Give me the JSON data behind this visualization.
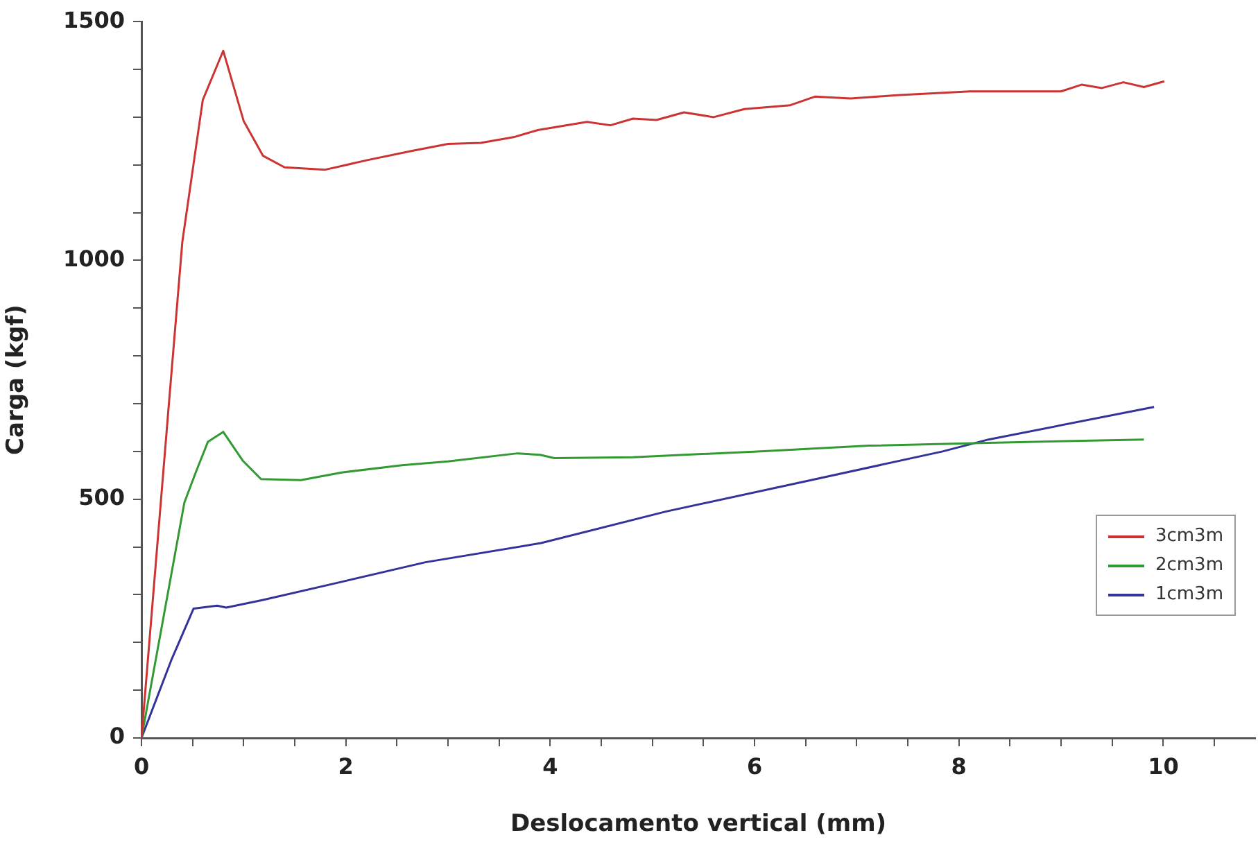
{
  "chart_data": {
    "type": "line",
    "xlabel": "Deslocamento vertical (mm)",
    "ylabel": "Carga (kgf)",
    "xlim": [
      0,
      10.9
    ],
    "ylim": [
      0,
      1500
    ],
    "xticks": [
      0,
      {
        "value": 0.5,
        "label": null
      },
      {
        "value": 1,
        "label": null
      },
      {
        "value": 1.5,
        "label": null
      },
      2,
      {
        "value": 2.5,
        "label": null
      },
      {
        "value": 3,
        "label": null
      },
      {
        "value": 3.5,
        "label": null
      },
      4,
      {
        "value": 4.5,
        "label": null
      },
      {
        "value": 5,
        "label": null
      },
      {
        "value": 5.5,
        "label": null
      },
      6,
      {
        "value": 6.5,
        "label": null
      },
      {
        "value": 7,
        "label": null
      },
      {
        "value": 7.5,
        "label": null
      },
      8,
      {
        "value": 8.5,
        "label": null
      },
      {
        "value": 9,
        "label": null
      },
      {
        "value": 9.5,
        "label": null
      },
      10,
      {
        "value": 10.5,
        "label": null
      }
    ],
    "yticks": [
      0,
      {
        "value": 100,
        "label": null
      },
      {
        "value": 200,
        "label": null
      },
      {
        "value": 300,
        "label": null
      },
      {
        "value": 400,
        "label": null
      },
      500,
      {
        "value": 600,
        "label": null
      },
      {
        "value": 700,
        "label": null
      },
      {
        "value": 800,
        "label": null
      },
      {
        "value": 900,
        "label": null
      },
      1000,
      {
        "value": 1100,
        "label": null
      },
      {
        "value": 1200,
        "label": null
      },
      {
        "value": 1300,
        "label": null
      },
      {
        "value": 1400,
        "label": null
      },
      1500
    ],
    "grid": false,
    "legend": "bottom right",
    "marker": "none",
    "line_style": "solid",
    "series": [
      {
        "name": "3cm3m",
        "color": "#cc3333",
        "x": [
          0,
          0.26,
          0.4,
          0.6,
          0.8,
          1.0,
          1.19,
          1.4,
          1.8,
          2.21,
          2.64,
          3.0,
          3.32,
          3.64,
          3.88,
          4.36,
          4.59,
          4.81,
          5.04,
          5.31,
          5.6,
          5.9,
          6.35,
          6.59,
          6.94,
          7.39,
          8.11,
          9.0,
          9.2,
          9.4,
          9.61,
          9.81,
          10.01
        ],
        "values": [
          0,
          678,
          1039,
          1336,
          1439,
          1292,
          1219,
          1195,
          1190,
          1210,
          1229,
          1244,
          1246,
          1258,
          1273,
          1290,
          1283,
          1297,
          1294,
          1310,
          1300,
          1317,
          1325,
          1343,
          1339,
          1346,
          1354,
          1354,
          1368,
          1361,
          1373,
          1363,
          1375
        ]
      },
      {
        "name": "2cm3m",
        "color": "#339933",
        "x": [
          0,
          0.42,
          0.54,
          0.65,
          0.8,
          0.99,
          1.17,
          1.56,
          1.96,
          2.55,
          3.0,
          3.68,
          3.9,
          4.04,
          4.81,
          6.03,
          7.12,
          8.29,
          9.81
        ],
        "values": [
          0,
          493,
          561,
          620,
          641,
          581,
          542,
          540,
          556,
          571,
          579,
          596,
          593,
          586,
          588,
          600,
          612,
          618,
          625
        ]
      },
      {
        "name": "1cm3m",
        "color": "#333399",
        "x": [
          0,
          0.29,
          0.51,
          0.74,
          0.83,
          1.19,
          1.96,
          2.78,
          3.91,
          5.13,
          6.49,
          7.84,
          8.29,
          9.91
        ],
        "values": [
          0,
          162,
          271,
          277,
          273,
          289,
          327,
          368,
          408,
          474,
          537,
          600,
          625,
          693
        ]
      }
    ]
  }
}
